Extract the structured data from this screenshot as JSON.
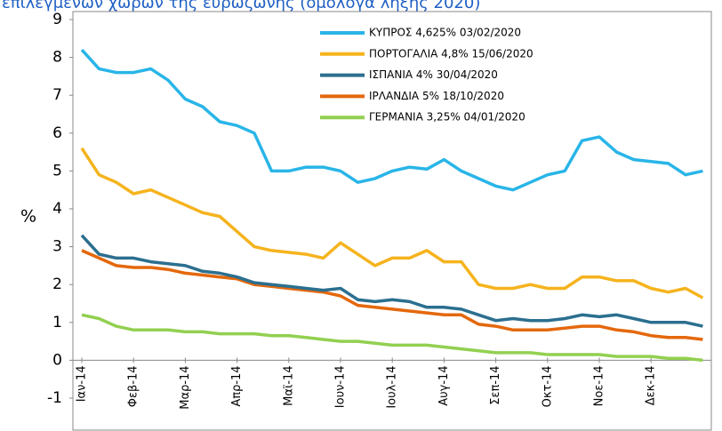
{
  "chart_data": {
    "type": "line",
    "title": "επιλεγμένων χωρών της ευρωζώνης (ομόλογα λήξης 2020)",
    "ylabel": "%",
    "categories": [
      "Ιαν-14",
      null,
      null,
      "Φεβ-14",
      null,
      null,
      "Μαρ-14",
      null,
      null,
      "Απρ-14",
      null,
      null,
      "Μαϊ-14",
      null,
      null,
      "Ιουν-14",
      null,
      null,
      "Ιουλ-14",
      null,
      null,
      "Αυγ-14",
      null,
      null,
      "Σεπ-14",
      null,
      null,
      "Οκτ-14",
      null,
      null,
      "Νοε-14",
      null,
      null,
      "Δεκ-14",
      null,
      null,
      null
    ],
    "ylim": [
      -1,
      9
    ],
    "yticks": [
      -1,
      0,
      1,
      2,
      3,
      4,
      5,
      6,
      7,
      8,
      9
    ],
    "grid": false,
    "legend": "top-center",
    "series": [
      {
        "name": "ΚΥΠΡΟΣ 4,625% 03/02/2020",
        "color": "#29b5e8",
        "values": [
          8.2,
          7.7,
          7.6,
          7.6,
          7.7,
          7.4,
          6.9,
          6.7,
          6.3,
          6.2,
          6.0,
          5.0,
          5.0,
          5.1,
          5.1,
          5.0,
          4.7,
          4.8,
          5.0,
          5.1,
          5.05,
          5.3,
          5.0,
          4.8,
          4.6,
          4.5,
          4.7,
          4.9,
          5.0,
          5.8,
          5.9,
          5.5,
          5.3,
          5.25,
          5.2,
          4.9,
          5.0
        ]
      },
      {
        "name": "ΠΟΡΤΟΓΑΛΙΑ 4,8% 15/06/2020",
        "color": "#f5b31d",
        "values": [
          5.6,
          4.9,
          4.7,
          4.4,
          4.5,
          4.3,
          4.1,
          3.9,
          3.8,
          3.4,
          3.0,
          2.9,
          2.85,
          2.8,
          2.7,
          3.1,
          2.8,
          2.5,
          2.7,
          2.7,
          2.9,
          2.6,
          2.6,
          2.0,
          1.9,
          1.9,
          2.0,
          1.9,
          1.9,
          2.2,
          2.2,
          2.1,
          2.1,
          1.9,
          1.8,
          1.9,
          1.65
        ]
      },
      {
        "name": "ΙΣΠΑΝΙΑ 4% 30/04/2020",
        "color": "#2b6f8f",
        "values": [
          3.3,
          2.8,
          2.7,
          2.7,
          2.6,
          2.55,
          2.5,
          2.35,
          2.3,
          2.2,
          2.05,
          2.0,
          1.95,
          1.9,
          1.85,
          1.9,
          1.6,
          1.55,
          1.6,
          1.55,
          1.4,
          1.4,
          1.35,
          1.2,
          1.05,
          1.1,
          1.05,
          1.05,
          1.1,
          1.2,
          1.15,
          1.2,
          1.1,
          1.0,
          1.0,
          1.0,
          0.9
        ]
      },
      {
        "name": "ΙΡΛΑΝΔΙΑ 5% 18/10/2020",
        "color": "#e4680c",
        "values": [
          2.9,
          2.7,
          2.5,
          2.45,
          2.45,
          2.4,
          2.3,
          2.25,
          2.2,
          2.15,
          2.0,
          1.95,
          1.9,
          1.85,
          1.8,
          1.7,
          1.45,
          1.4,
          1.35,
          1.3,
          1.25,
          1.2,
          1.2,
          0.95,
          0.9,
          0.8,
          0.8,
          0.8,
          0.85,
          0.9,
          0.9,
          0.8,
          0.75,
          0.65,
          0.6,
          0.6,
          0.55
        ]
      },
      {
        "name": "ΓΕΡΜΑΝΙΑ 3,25% 04/01/2020",
        "color": "#92d050",
        "values": [
          1.2,
          1.1,
          0.9,
          0.8,
          0.8,
          0.8,
          0.75,
          0.75,
          0.7,
          0.7,
          0.7,
          0.65,
          0.65,
          0.6,
          0.55,
          0.5,
          0.5,
          0.45,
          0.4,
          0.4,
          0.4,
          0.35,
          0.3,
          0.25,
          0.2,
          0.2,
          0.2,
          0.15,
          0.15,
          0.15,
          0.15,
          0.1,
          0.1,
          0.1,
          0.05,
          0.05,
          0.0
        ]
      }
    ]
  }
}
